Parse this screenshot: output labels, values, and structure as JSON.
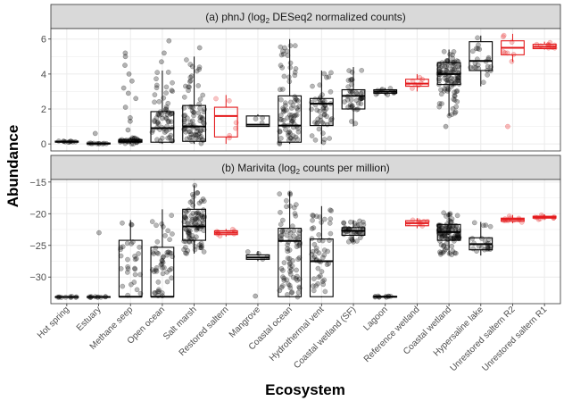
{
  "chart_data": [
    {
      "type": "box",
      "panel": "a",
      "title_prefix": "(a) phnJ (log",
      "title_sub": "2",
      "title_suffix": " DESeq2 normalized counts)",
      "ylim": [
        -0.4,
        6.6
      ],
      "yticks": [
        0,
        2,
        4,
        6
      ],
      "ytick_labels": [
        "0",
        "2",
        "4",
        "6"
      ],
      "grid": true,
      "categories": [
        "Hot spring",
        "Estuary",
        "Methane seep",
        "Open ocean",
        "Salt marsh",
        "Restored saltern",
        "Mangrove",
        "Coastal ocean",
        "Hydrothermal vent",
        "Coastal wetland (SF)",
        "Lagoon",
        "Reference wetland",
        "Coastal wetland",
        "Hypersaline lake",
        "Unrestored saltern R2",
        "Unrestored saltern R1"
      ],
      "series": [
        {
          "name": "Hot spring",
          "group": "other",
          "q1": 0.1,
          "median": 0.13,
          "q3": 0.16,
          "lo": 0.08,
          "hi": 0.18,
          "n": 10,
          "spread": 0.06
        },
        {
          "name": "Estuary",
          "group": "other",
          "q1": 0.0,
          "median": 0.02,
          "q3": 0.05,
          "lo": 0.0,
          "hi": 0.07,
          "n": 10,
          "spread": 0.05,
          "outliers": [
            0.6
          ]
        },
        {
          "name": "Methane seep",
          "group": "other",
          "q1": 0.1,
          "median": 0.15,
          "q3": 0.25,
          "lo": 0.0,
          "hi": 0.35,
          "n": 30,
          "spread": 0.3,
          "outliers": [
            0.8,
            1.3,
            1.5,
            2.1,
            2.6,
            2.9,
            3.2,
            3.6,
            4.0,
            4.5,
            5.0,
            5.2
          ]
        },
        {
          "name": "Open ocean",
          "group": "other",
          "q1": 0.1,
          "median": 0.9,
          "q3": 1.85,
          "lo": 0.0,
          "hi": 4.2,
          "n": 60,
          "spread": 4.0,
          "outliers": [
            4.7,
            5.2,
            5.9
          ]
        },
        {
          "name": "Salt marsh",
          "group": "other",
          "q1": 0.15,
          "median": 1.0,
          "q3": 2.2,
          "lo": 0.0,
          "hi": 5.0,
          "n": 80,
          "spread": 4.8,
          "outliers": [
            5.5
          ]
        },
        {
          "name": "Restored saltern",
          "group": "saltern",
          "q1": 0.4,
          "median": 1.6,
          "q3": 2.1,
          "lo": 0.0,
          "hi": 2.8,
          "n": 6,
          "spread": 2.8
        },
        {
          "name": "Mangrove",
          "group": "other",
          "q1": 1.0,
          "median": 1.1,
          "q3": 1.6,
          "lo": 1.0,
          "hi": 1.7,
          "n": 3,
          "spread": 0.5
        },
        {
          "name": "Coastal ocean",
          "group": "other",
          "q1": 0.1,
          "median": 1.05,
          "q3": 2.75,
          "lo": 0.0,
          "hi": 6.0,
          "n": 80,
          "spread": 6.0
        },
        {
          "name": "Hydrothermal vent",
          "group": "other",
          "q1": 1.05,
          "median": 2.3,
          "q3": 2.6,
          "lo": 0.0,
          "hi": 4.2,
          "n": 50,
          "spread": 4.0
        },
        {
          "name": "Coastal wetland (SF)",
          "group": "other",
          "q1": 2.0,
          "median": 2.75,
          "q3": 3.1,
          "lo": 1.0,
          "hi": 4.4,
          "n": 40,
          "spread": 3.2
        },
        {
          "name": "Lagoon",
          "group": "other",
          "q1": 2.9,
          "median": 3.0,
          "q3": 3.1,
          "lo": 2.8,
          "hi": 3.2,
          "n": 12,
          "spread": 0.3
        },
        {
          "name": "Reference wetland",
          "group": "saltern",
          "q1": 3.3,
          "median": 3.45,
          "q3": 3.7,
          "lo": 3.0,
          "hi": 4.0,
          "n": 8,
          "spread": 1.0
        },
        {
          "name": "Coastal wetland",
          "group": "other",
          "q1": 3.4,
          "median": 4.0,
          "q3": 4.65,
          "lo": 1.6,
          "hi": 5.4,
          "n": 100,
          "spread": 3.8,
          "outliers": [
            1.0
          ]
        },
        {
          "name": "Hypersaline lake",
          "group": "other",
          "q1": 4.2,
          "median": 4.75,
          "q3": 5.85,
          "lo": 3.3,
          "hi": 6.2,
          "n": 22,
          "spread": 2.8
        },
        {
          "name": "Unrestored saltern R2",
          "group": "saltern",
          "q1": 5.1,
          "median": 5.5,
          "q3": 5.9,
          "lo": 4.7,
          "hi": 6.3,
          "n": 8,
          "spread": 1.6,
          "outliers": [
            1.0
          ]
        },
        {
          "name": "Unrestored saltern R1",
          "group": "saltern",
          "q1": 5.45,
          "median": 5.55,
          "q3": 5.7,
          "lo": 5.4,
          "hi": 5.85,
          "n": 10,
          "spread": 0.45
        }
      ]
    },
    {
      "type": "box",
      "panel": "b",
      "title_prefix": "(b) Marivita (log",
      "title_sub": "2",
      "title_suffix": " counts per million)",
      "ylim": [
        -34.2,
        -14.6
      ],
      "yticks": [
        -30,
        -25,
        -20,
        -15
      ],
      "ytick_labels": [
        "−30",
        "−25",
        "−20",
        "−15"
      ],
      "grid": true,
      "categories": [
        "Hot spring",
        "Estuary",
        "Methane seep",
        "Open ocean",
        "Salt marsh",
        "Restored saltern",
        "Mangrove",
        "Coastal ocean",
        "Hydrothermal vent",
        "Coastal wetland (SF)",
        "Lagoon",
        "Reference wetland",
        "Coastal wetland",
        "Hypersaline lake",
        "Unrestored saltern R2",
        "Unrestored saltern R1"
      ],
      "series": [
        {
          "name": "Hot spring",
          "group": "other",
          "q1": -33.2,
          "median": -33.15,
          "q3": -33.1,
          "lo": -33.25,
          "hi": -33.05,
          "n": 10,
          "spread": 0.2
        },
        {
          "name": "Estuary",
          "group": "other",
          "q1": -33.2,
          "median": -33.15,
          "q3": -33.1,
          "lo": -33.25,
          "hi": -33.05,
          "n": 10,
          "spread": 0.2,
          "outliers": [
            -23.0
          ]
        },
        {
          "name": "Methane seep",
          "group": "other",
          "q1": -33.1,
          "median": -33.1,
          "q3": -24.2,
          "lo": -33.2,
          "hi": -21.0,
          "n": 30,
          "spread": 12.0
        },
        {
          "name": "Open ocean",
          "group": "other",
          "q1": -33.1,
          "median": -33.1,
          "q3": -25.3,
          "lo": -33.2,
          "hi": -19.3,
          "n": 50,
          "spread": 13.8
        },
        {
          "name": "Salt marsh",
          "group": "other",
          "q1": -24.2,
          "median": -22.0,
          "q3": -19.3,
          "lo": -26.3,
          "hi": -15.5,
          "n": 90,
          "spread": 10.8
        },
        {
          "name": "Restored saltern",
          "group": "saltern",
          "q1": -23.3,
          "median": -23.0,
          "q3": -22.7,
          "lo": -23.6,
          "hi": -22.4,
          "n": 8,
          "spread": 1.2
        },
        {
          "name": "Mangrove",
          "group": "other",
          "q1": -27.2,
          "median": -26.9,
          "q3": -26.5,
          "lo": -27.5,
          "hi": -25.9,
          "n": 4,
          "spread": 1.5,
          "outliers": [
            -33.0
          ]
        },
        {
          "name": "Coastal ocean",
          "group": "other",
          "q1": -33.1,
          "median": -24.3,
          "q3": -22.3,
          "lo": -33.2,
          "hi": -16.5,
          "n": 80,
          "spread": 16.7
        },
        {
          "name": "Hydrothermal vent",
          "group": "other",
          "q1": -33.1,
          "median": -27.5,
          "q3": -24.0,
          "lo": -33.2,
          "hi": -18.8,
          "n": 50,
          "spread": 14.4
        },
        {
          "name": "Coastal wetland (SF)",
          "group": "other",
          "q1": -23.4,
          "median": -22.7,
          "q3": -22.2,
          "lo": -24.5,
          "hi": -21.0,
          "n": 40,
          "spread": 3.5
        },
        {
          "name": "Lagoon",
          "group": "other",
          "q1": -33.15,
          "median": -33.1,
          "q3": -33.05,
          "lo": -33.2,
          "hi": -33.0,
          "n": 10,
          "spread": 0.2
        },
        {
          "name": "Reference wetland",
          "group": "saltern",
          "q1": -21.9,
          "median": -21.5,
          "q3": -21.1,
          "lo": -22.3,
          "hi": -20.7,
          "n": 8,
          "spread": 1.6
        },
        {
          "name": "Coastal wetland",
          "group": "other",
          "q1": -24.2,
          "median": -22.9,
          "q3": -21.7,
          "lo": -26.5,
          "hi": -19.8,
          "n": 100,
          "spread": 6.7
        },
        {
          "name": "Hypersaline lake",
          "group": "other",
          "q1": -25.7,
          "median": -24.8,
          "q3": -23.8,
          "lo": -26.6,
          "hi": -21.3,
          "n": 22,
          "spread": 5.0
        },
        {
          "name": "Unrestored saltern R2",
          "group": "saltern",
          "q1": -21.2,
          "median": -20.9,
          "q3": -20.7,
          "lo": -21.5,
          "hi": -20.2,
          "n": 10,
          "spread": 1.2
        },
        {
          "name": "Unrestored saltern R1",
          "group": "saltern",
          "q1": -20.7,
          "median": -20.55,
          "q3": -20.4,
          "lo": -20.9,
          "hi": -20.1,
          "n": 10,
          "spread": 0.8
        }
      ]
    }
  ],
  "axes": {
    "xlabel": "Ecosystem",
    "ylabel": "Abundance"
  },
  "colors": {
    "other": "#000000",
    "saltern": "#e41a1c",
    "panel_bg": "#ffffff",
    "strip_bg": "#d9d9d9",
    "grid": "#ebebeb",
    "frame": "#333333"
  }
}
